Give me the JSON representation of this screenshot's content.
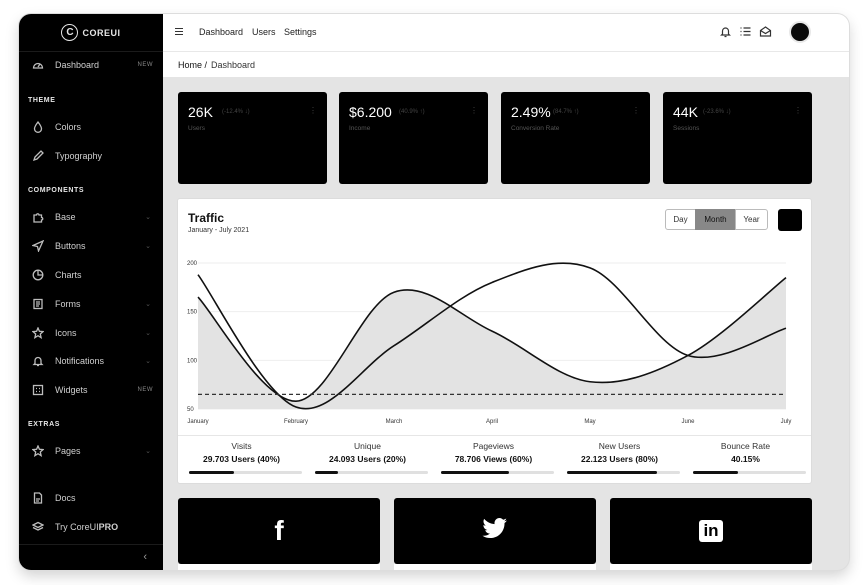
{
  "brand": {
    "logo_letter": "C",
    "name": "COREUI"
  },
  "sidebar": {
    "dashboard": {
      "label": "Dashboard",
      "badge": "NEW"
    },
    "sections": {
      "theme": "THEME",
      "components": "COMPONENTS",
      "extras": "EXTRAS"
    },
    "theme_items": [
      "Colors",
      "Typography"
    ],
    "component_items": [
      "Base",
      "Buttons",
      "Charts",
      "Forms",
      "Icons",
      "Notifications",
      "Widgets"
    ],
    "widgets_badge": "NEW",
    "extras_items": [
      "Pages"
    ],
    "bottom_items": [
      "Docs",
      "Try CoreUI"
    ],
    "pro_suffix": "PRO",
    "toggle": "‹"
  },
  "header": {
    "nav": [
      "Dashboard",
      "Users",
      "Settings"
    ],
    "icons": [
      "bell-icon",
      "list-icon",
      "envelope-icon"
    ]
  },
  "breadcrumb": {
    "home": "Home",
    "separator": "/",
    "current": "Dashboard"
  },
  "stats": [
    {
      "value": "26K",
      "delta": "(-12.4% ↓)",
      "label": "Users"
    },
    {
      "value": "$6.200",
      "delta": "(40.9% ↑)",
      "label": "Income"
    },
    {
      "value": "2.49%",
      "delta": "(84.7% ↑)",
      "label": "Conversion Rate"
    },
    {
      "value": "44K",
      "delta": "(-23.6% ↓)",
      "label": "Sessions"
    }
  ],
  "traffic": {
    "title": "Traffic",
    "subtitle": "January - July 2021",
    "range_buttons": [
      "Day",
      "Month",
      "Year"
    ],
    "active_range": "Month"
  },
  "chart_data": {
    "type": "line",
    "x": [
      "January",
      "February",
      "March",
      "April",
      "May",
      "June",
      "July"
    ],
    "ylim": [
      50,
      200
    ],
    "yticks": [
      50,
      100,
      150,
      200
    ],
    "grid": true,
    "series": [
      {
        "fill": true,
        "values": [
          165,
          58,
          170,
          130,
          78,
          105,
          185
        ]
      },
      {
        "fill": false,
        "values": [
          188,
          52,
          115,
          180,
          195,
          105,
          133
        ]
      },
      {
        "fill": false,
        "dashed": true,
        "values": [
          65,
          65,
          65,
          65,
          65,
          65,
          65
        ]
      }
    ]
  },
  "stats_footer": [
    {
      "label": "Visits",
      "value": "29.703 Users (40%)",
      "progress": 0.4
    },
    {
      "label": "Unique",
      "value": "24.093 Users (20%)",
      "progress": 0.2
    },
    {
      "label": "Pageviews",
      "value": "78.706 Views (60%)",
      "progress": 0.6
    },
    {
      "label": "New Users",
      "value": "22.123 Users (80%)",
      "progress": 0.8
    },
    {
      "label": "Bounce Rate",
      "value": "40.15%",
      "progress": 0.4
    }
  ],
  "social": [
    {
      "glyph": "f",
      "icon": "facebook-icon"
    },
    {
      "glyph": "",
      "icon": "twitter-icon"
    },
    {
      "glyph": "in",
      "icon": "linkedin-icon"
    }
  ]
}
